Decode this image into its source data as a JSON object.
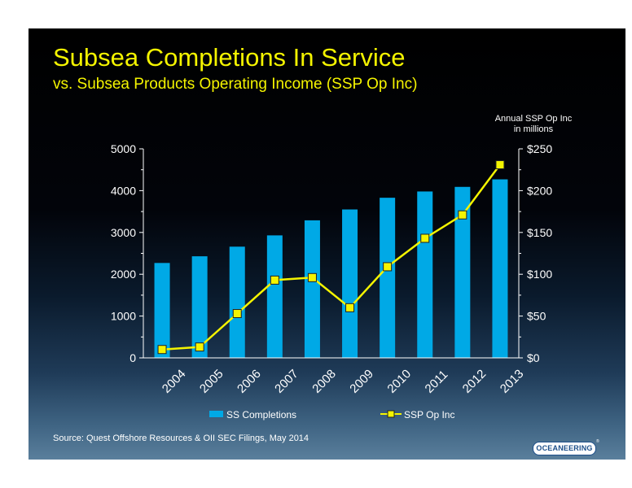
{
  "chart_data": {
    "type": "bar",
    "title": "Subsea Completions In Service",
    "subtitle": "vs. Subsea Products Operating Income (SSP Op Inc)",
    "categories": [
      "2004",
      "2005",
      "2006",
      "2007",
      "2008",
      "2009",
      "2010",
      "2011",
      "2012",
      "2013"
    ],
    "series": [
      {
        "name": "SS Completions",
        "type": "bar",
        "axis": "left",
        "color": "#00a9e6",
        "values": [
          2270,
          2430,
          2660,
          2930,
          3290,
          3550,
          3830,
          3980,
          4090,
          4270
        ]
      },
      {
        "name": "SSP Op Inc",
        "type": "line",
        "axis": "right",
        "color": "#f4f400",
        "values": [
          10,
          13,
          53,
          93,
          96,
          60,
          109,
          143,
          171,
          231
        ]
      }
    ],
    "y_left": {
      "range": [
        0,
        5000
      ],
      "ticks": [
        "0",
        "1000",
        "2000",
        "3000",
        "4000",
        "5000"
      ]
    },
    "y_right": {
      "range": [
        0,
        250
      ],
      "ticks": [
        "$0",
        "$50",
        "$100",
        "$150",
        "$200",
        "$250"
      ],
      "label_line1": "Annual SSP Op Inc",
      "label_line2": "in millions"
    },
    "legend_position": "bottom",
    "grid": false
  },
  "source_text": "Source:  Quest Offshore Resources & OII SEC Filings, May 2014",
  "logo_text": "OCEANEERING",
  "logo_mark": "®"
}
